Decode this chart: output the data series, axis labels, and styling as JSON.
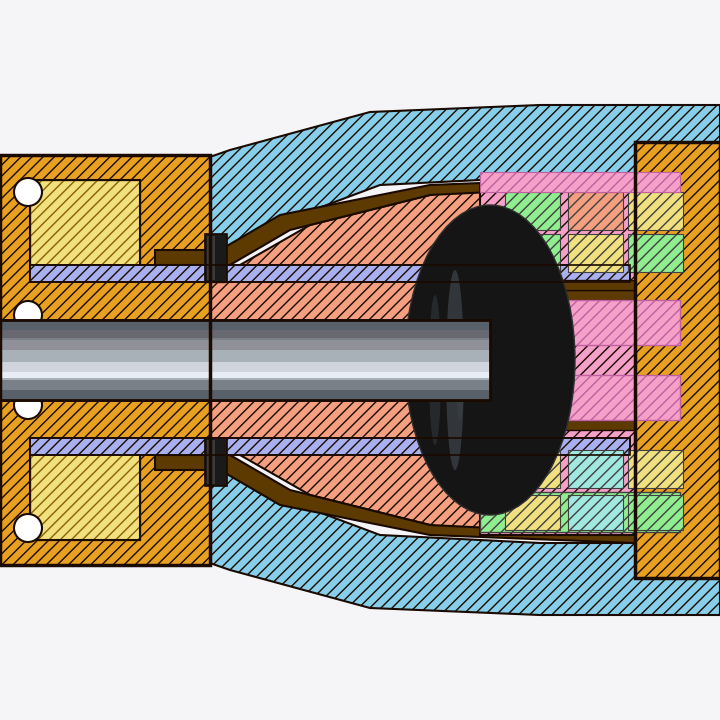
{
  "bg_color": "#f2f2f2",
  "outline_color": "#1a0a00",
  "colors": {
    "orange_housing": "#E8A020",
    "dark_brown": "#5C3A00",
    "light_blue": "#87CEEB",
    "salmon_pink": "#F4A080",
    "pink": "#F4A0C8",
    "light_green": "#90EE90",
    "light_yellow": "#F0E080",
    "light_cyan": "#A0E8E0",
    "blue_bearing": "#A8B0F0",
    "black_cam": "#181818",
    "shaft_dark": "#606070",
    "shaft_mid": "#A8B0BC",
    "shaft_light": "#D8DCE8"
  }
}
